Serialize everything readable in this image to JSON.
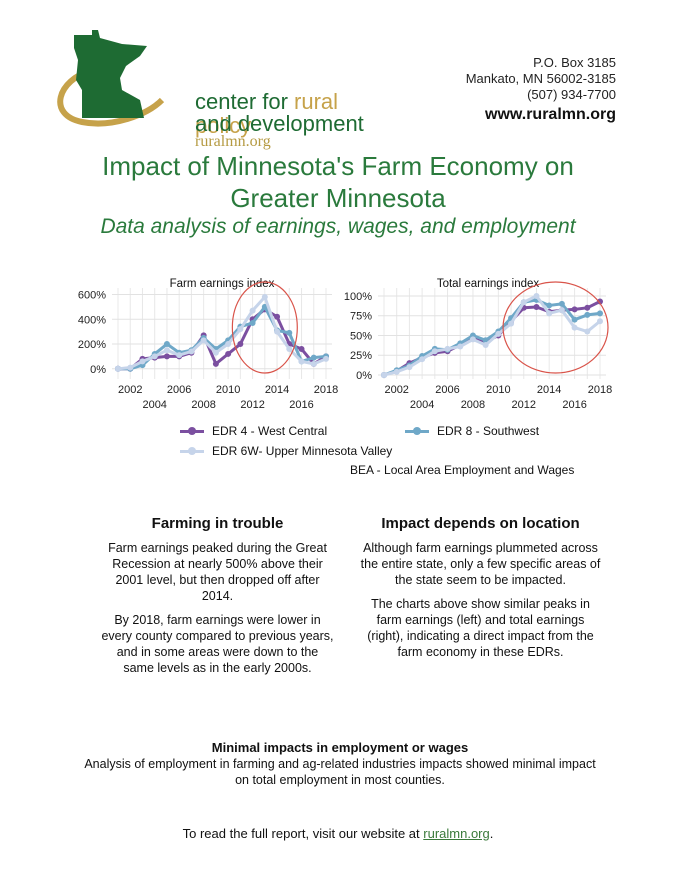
{
  "header": {
    "logo": {
      "line1_plain": "center for ",
      "line1_accent": "rural policy",
      "line2": "and development",
      "url": "ruralmn.org"
    },
    "address": {
      "line1": "P.O. Box 3185",
      "line2": "Mankato, MN 56002-3185",
      "line3": "(507) 934-7700",
      "website": "www.ruralmn.org"
    }
  },
  "title": {
    "main": "Impact of Minnesota's Farm Economy on Greater Minnesota",
    "subtitle": "Data analysis of earnings, wages, and employment"
  },
  "colors": {
    "edr4": "#7b4fa0",
    "edr8": "#6fa8c8",
    "edr6w": "#c6d4ea",
    "highlight_circle": "#d9544a",
    "title_green": "#2a7a3c"
  },
  "chart_data": [
    {
      "type": "line",
      "title": "Farm earnings index",
      "x": [
        2001,
        2002,
        2003,
        2004,
        2005,
        2006,
        2007,
        2008,
        2009,
        2010,
        2011,
        2012,
        2013,
        2014,
        2015,
        2016,
        2017,
        2018
      ],
      "x_ticks_top": [
        "2002",
        "2006",
        "2010",
        "2014",
        "2018"
      ],
      "x_ticks_bottom": [
        "2004",
        "2008",
        "2012",
        "2016"
      ],
      "y_ticks": [
        "0%",
        "200%",
        "400%",
        "600%"
      ],
      "ylim": [
        -50,
        620
      ],
      "series": [
        {
          "name": "EDR 4 - West Central",
          "values": [
            0,
            0,
            80,
            90,
            100,
            100,
            130,
            270,
            40,
            120,
            200,
            400,
            480,
            420,
            200,
            160,
            40,
            100
          ]
        },
        {
          "name": "EDR 8 - Southwest",
          "values": [
            0,
            0,
            30,
            120,
            200,
            130,
            150,
            250,
            160,
            230,
            340,
            370,
            500,
            310,
            290,
            60,
            90,
            100
          ]
        },
        {
          "name": "EDR 6W- Upper Minnesota Valley",
          "values": [
            0,
            10,
            60,
            100,
            150,
            110,
            140,
            230,
            130,
            200,
            320,
            470,
            580,
            300,
            160,
            60,
            40,
            80
          ]
        }
      ],
      "highlight": "2011-2015"
    },
    {
      "type": "line",
      "title": "Total earnings index",
      "x": [
        2001,
        2002,
        2003,
        2004,
        2005,
        2006,
        2007,
        2008,
        2009,
        2010,
        2011,
        2012,
        2013,
        2014,
        2015,
        2016,
        2017,
        2018
      ],
      "x_ticks_top": [
        "2002",
        "2006",
        "2010",
        "2014",
        "2018"
      ],
      "x_ticks_bottom": [
        "2004",
        "2008",
        "2012",
        "2016"
      ],
      "y_ticks": [
        "0%",
        "25%",
        "50%",
        "75%",
        "100%"
      ],
      "ylim": [
        0,
        105
      ],
      "series": [
        {
          "name": "EDR 4 - West Central",
          "values": [
            0,
            5,
            15,
            22,
            28,
            30,
            38,
            48,
            42,
            50,
            68,
            85,
            86,
            80,
            82,
            83,
            85,
            93
          ]
        },
        {
          "name": "EDR 8 - Southwest",
          "values": [
            0,
            6,
            12,
            24,
            33,
            32,
            40,
            50,
            44,
            55,
            72,
            92,
            95,
            88,
            90,
            70,
            76,
            78
          ]
        },
        {
          "name": "EDR 6W- Upper Minnesota Valley",
          "values": [
            0,
            4,
            10,
            20,
            30,
            33,
            36,
            45,
            38,
            52,
            65,
            92,
            100,
            78,
            82,
            60,
            55,
            68
          ]
        }
      ],
      "highlight": "2011-2018"
    }
  ],
  "legend": {
    "edr4": "EDR 4 - West Central",
    "edr8": "EDR 8 - Southwest",
    "edr6w": "EDR 6W- Upper Minnesota Valley"
  },
  "source": "BEA - Local Area Employment and Wages",
  "left_column": {
    "heading": "Farming in trouble",
    "para1": "Farm earnings peaked during the Great Recession at nearly 500% above their 2001 level, but then dropped off after 2014.",
    "para2": "By 2018, farm earnings were lower in every county compared to previous years, and in some areas were down to the same levels as in the early 2000s."
  },
  "right_column": {
    "heading": "Impact depends on location",
    "para1": "Although farm earnings plummeted across the entire state, only a few specific areas of the state seem to be impacted.",
    "para2": "The charts above show similar peaks in farm earnings (left) and total earnings (right), indicating a direct impact from the farm economy in these EDRs."
  },
  "minimal": {
    "heading": "Minimal impacts in employment or wages",
    "text": "Analysis of employment in farming and ag-related industries impacts showed minimal impact on total employment in most counties."
  },
  "footer": {
    "text": "To read the full report, visit our website at ",
    "link": "ruralmn.org",
    "end": "."
  }
}
